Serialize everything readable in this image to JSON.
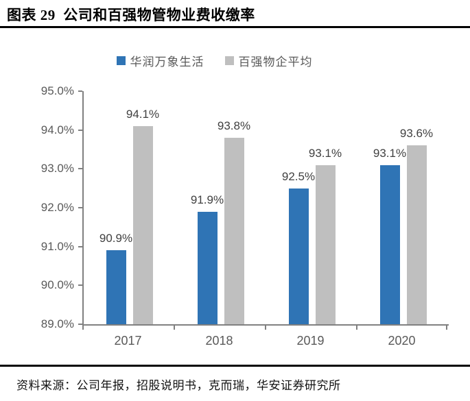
{
  "header": {
    "title": "图表 29  公司和百强物管物业费收缴率"
  },
  "footer": {
    "source": "资料来源：公司年报，招股说明书，克而瑞，华安证券研究所"
  },
  "colors": {
    "series_blue": "#2F74B5",
    "series_gray": "#BFBFBF",
    "value_label": "#404040",
    "axis_line": "#808080",
    "axis_text": "#595959",
    "divider": "#000000"
  },
  "chart_data": {
    "type": "bar",
    "title": "公司和百强物管物业费收缴率",
    "categories": [
      "2017",
      "2018",
      "2019",
      "2020"
    ],
    "series": [
      {
        "name": "华润万象生活",
        "color": "#2F74B5",
        "values": [
          90.9,
          91.9,
          92.5,
          93.1
        ]
      },
      {
        "name": "百强物企平均",
        "color": "#BFBFBF",
        "values": [
          94.1,
          93.8,
          93.1,
          93.6
        ]
      }
    ],
    "value_labels": [
      "90.9%",
      "94.1%",
      "91.9%",
      "93.8%",
      "92.5%",
      "93.1%",
      "93.1%",
      "93.6%"
    ],
    "xlabel": "",
    "ylabel": "",
    "ylim": [
      89.0,
      95.0
    ],
    "yticks": [
      {
        "value": 95.0,
        "label": "95.0%"
      },
      {
        "value": 94.0,
        "label": "94.0%"
      },
      {
        "value": 93.0,
        "label": "93.0%"
      },
      {
        "value": 92.0,
        "label": "92.0%"
      },
      {
        "value": 91.0,
        "label": "91.0%"
      },
      {
        "value": 90.0,
        "label": "90.0%"
      },
      {
        "value": 89.0,
        "label": "89.0%"
      }
    ],
    "grid": false,
    "legend_position": "top"
  }
}
